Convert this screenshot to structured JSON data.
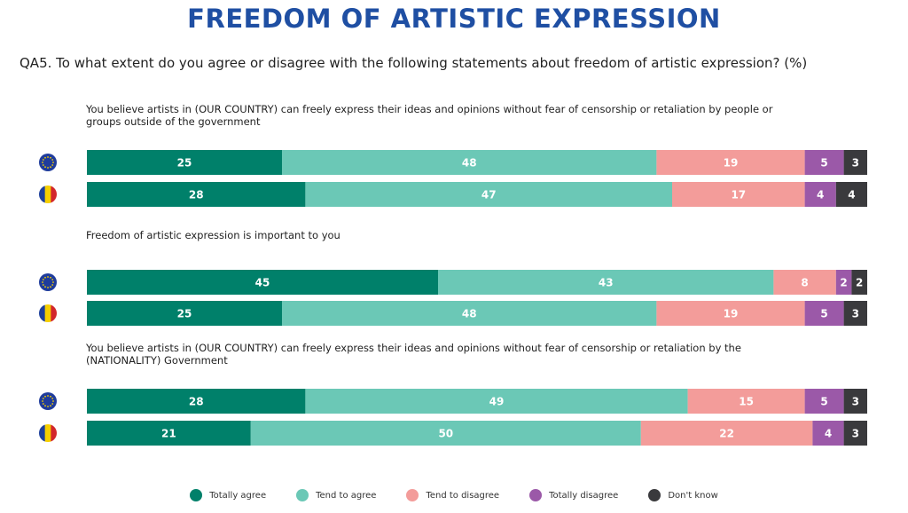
{
  "page": {
    "title": "FREEDOM OF ARTISTIC EXPRESSION",
    "question": "QA5. To what extent do you agree or disagree with the following statements about freedom of artistic expression? (%)"
  },
  "colors": {
    "totally_agree": "#00806a",
    "tend_to_agree": "#6bc8b6",
    "tend_to_disagree": "#f39c9a",
    "totally_disagree": "#9b59a8",
    "dont_know": "#3a3a3d",
    "title": "#1f4fa3"
  },
  "legend": [
    {
      "key": "totally_agree",
      "label": "Totally agree"
    },
    {
      "key": "tend_to_agree",
      "label": "Tend to agree"
    },
    {
      "key": "tend_to_disagree",
      "label": "Tend to disagree"
    },
    {
      "key": "totally_disagree",
      "label": "Totally disagree"
    },
    {
      "key": "dont_know",
      "label": "Don't know"
    }
  ],
  "chart_data": {
    "type": "bar",
    "orientation": "horizontal",
    "stacked": true,
    "unit": "%",
    "series_order": [
      "Totally agree",
      "Tend to agree",
      "Tend to disagree",
      "Totally disagree",
      "Don't know"
    ],
    "groups": [
      {
        "statement": "You believe artists in (OUR COUNTRY) can freely express their ideas and opinions without fear of censorship or retaliation by people or groups outside of the government",
        "rows": [
          {
            "flag": "eu-flag-icon",
            "values": [
              25,
              48,
              19,
              5,
              3
            ]
          },
          {
            "flag": "romania-flag-icon",
            "values": [
              28,
              47,
              17,
              4,
              4
            ]
          }
        ]
      },
      {
        "statement": "Freedom of artistic expression is important to you",
        "rows": [
          {
            "flag": "eu-flag-icon",
            "values": [
              45,
              43,
              8,
              2,
              2
            ]
          },
          {
            "flag": "romania-flag-icon",
            "values": [
              25,
              48,
              19,
              5,
              3
            ]
          }
        ]
      },
      {
        "statement": "You believe artists in (OUR COUNTRY) can freely express their ideas and opinions without fear of censorship or retaliation by the (NATIONALITY) Government",
        "rows": [
          {
            "flag": "eu-flag-icon",
            "values": [
              28,
              49,
              15,
              5,
              3
            ]
          },
          {
            "flag": "romania-flag-icon",
            "values": [
              21,
              50,
              22,
              4,
              3
            ]
          }
        ]
      }
    ]
  }
}
